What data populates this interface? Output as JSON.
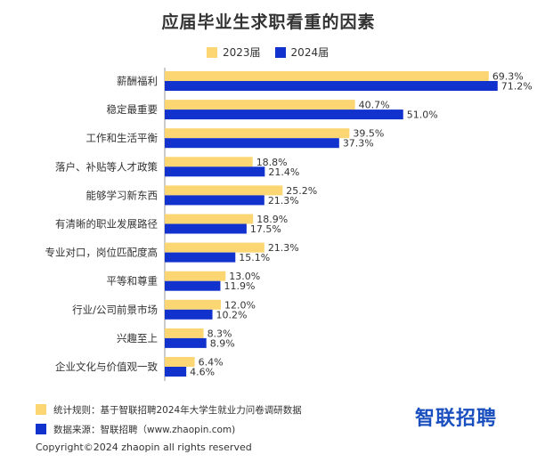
{
  "colors": {
    "y2023": "#FCD672",
    "y2024": "#1232CD",
    "text": "#333333",
    "logo": "#1a4fbf"
  },
  "chart_data": {
    "type": "bar",
    "orientation": "horizontal",
    "title": "应届毕业生求职看重的因素",
    "xlim": [
      0,
      80
    ],
    "grid": false,
    "legend_position": "top-center",
    "categories": [
      "薪酬福利",
      "稳定最重要",
      "工作和生活平衡",
      "落户、补贴等人才政策",
      "能够学习新东西",
      "有清晰的职业发展路径",
      "专业对口，岗位匹配度高",
      "平等和尊重",
      "行业/公司前景市场",
      "兴趣至上",
      "企业文化与价值观一致"
    ],
    "series": [
      {
        "name": "2023届",
        "values": [
          69.3,
          40.7,
          39.5,
          18.8,
          25.2,
          18.9,
          21.3,
          13.0,
          12.0,
          8.3,
          6.4
        ],
        "labels": [
          "69.3%",
          "40.7%",
          "39.5%",
          "18.8%",
          "25.2%",
          "18.9%",
          "21.3%",
          "13.0%",
          "12.0%",
          "8.3%",
          "6.4%"
        ]
      },
      {
        "name": "2024届",
        "values": [
          71.2,
          51.0,
          37.3,
          21.4,
          21.3,
          17.5,
          15.1,
          11.9,
          10.2,
          8.9,
          4.6
        ],
        "labels": [
          "71.2%",
          "51.0%",
          "37.3%",
          "21.4%",
          "21.3%",
          "17.5%",
          "15.1%",
          "11.9%",
          "10.2%",
          "8.9%",
          "4.6%"
        ]
      }
    ]
  },
  "footnotes": {
    "rule": "统计规则：基于智联招聘2024年大学生就业力问卷调研数据",
    "source": "数据来源：智联招聘（www.zhaopin.com)"
  },
  "logo_text": "智联招聘",
  "copyright": "Copyright©2024 zhaopin all rights reserved"
}
